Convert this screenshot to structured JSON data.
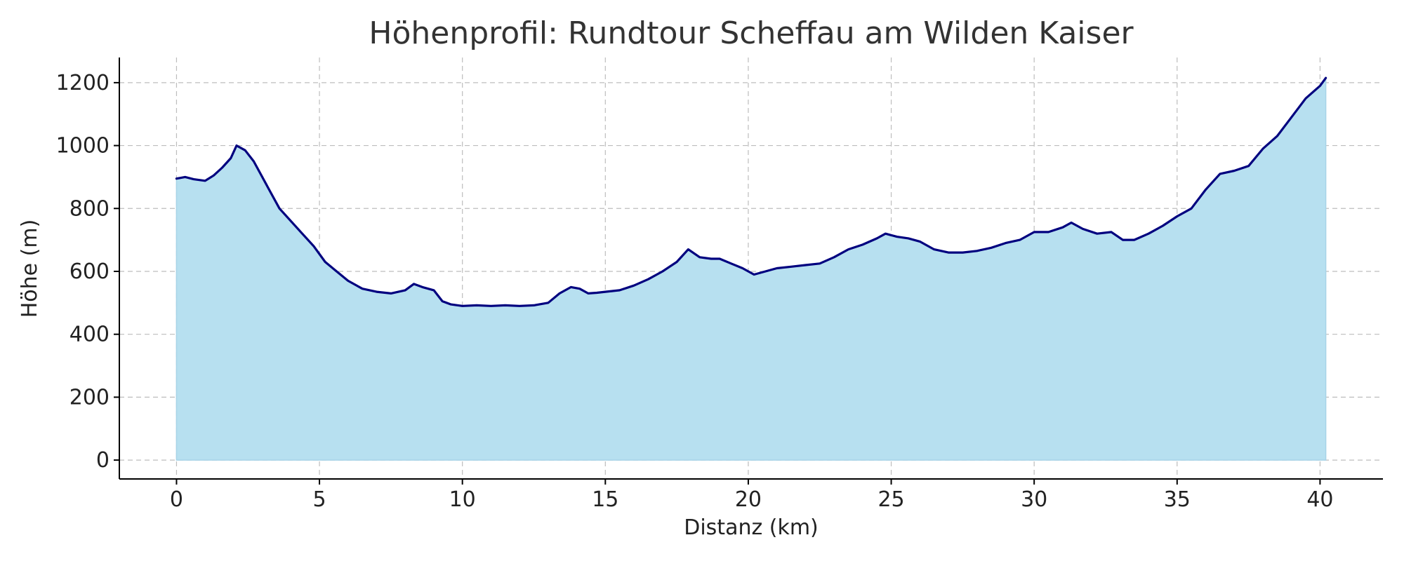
{
  "chart_data": {
    "type": "area",
    "title": "Höhenprofil: Rundtour Scheffau am Wilden Kaiser",
    "xlabel": "Distanz (km)",
    "ylabel": "Höhe (m)",
    "xlim": [
      -2,
      42.2
    ],
    "ylim": [
      -60,
      1280
    ],
    "xticks": [
      0,
      5,
      10,
      15,
      20,
      25,
      30,
      35,
      40
    ],
    "yticks": [
      0,
      200,
      400,
      600,
      800,
      1000,
      1200
    ],
    "grid": true,
    "legend": "none",
    "colors": {
      "line": "#00007f",
      "fill": "#b7e0f0",
      "fill_edge": "#a8d4e8"
    },
    "series": [
      {
        "x": [
          0,
          0.3,
          0.6,
          1.0,
          1.3,
          1.6,
          1.9,
          2.1,
          2.4,
          2.7,
          3.0,
          3.3,
          3.6,
          4.0,
          4.4,
          4.8,
          5.2,
          5.6,
          6.0,
          6.5,
          7.0,
          7.5,
          8.0,
          8.3,
          8.6,
          9.0,
          9.3,
          9.6,
          10.0,
          10.5,
          11.0,
          11.5,
          12.0,
          12.5,
          13.0,
          13.4,
          13.8,
          14.1,
          14.4,
          14.7,
          15.0,
          15.5,
          16.0,
          16.5,
          17.0,
          17.5,
          17.9,
          18.3,
          18.7,
          19.0,
          19.4,
          19.8,
          20.2,
          20.6,
          21.0,
          21.5,
          22.0,
          22.5,
          23.0,
          23.5,
          24.0,
          24.5,
          24.8,
          25.2,
          25.6,
          26.0,
          26.5,
          27.0,
          27.5,
          28.0,
          28.5,
          29.0,
          29.5,
          30.0,
          30.5,
          31.0,
          31.3,
          31.7,
          32.2,
          32.7,
          33.1,
          33.5,
          34.0,
          34.5,
          35.0,
          35.5,
          36.0,
          36.5,
          37.0,
          37.5,
          38.0,
          38.5,
          39.0,
          39.5,
          40.0,
          40.2
        ],
        "values": [
          895,
          900,
          893,
          888,
          905,
          930,
          960,
          1000,
          985,
          950,
          900,
          850,
          800,
          760,
          720,
          680,
          630,
          600,
          570,
          545,
          535,
          530,
          540,
          560,
          550,
          540,
          505,
          495,
          490,
          492,
          490,
          492,
          490,
          492,
          500,
          530,
          550,
          545,
          530,
          532,
          535,
          540,
          555,
          575,
          600,
          630,
          670,
          645,
          640,
          640,
          625,
          610,
          590,
          600,
          610,
          615,
          620,
          625,
          645,
          670,
          685,
          705,
          720,
          710,
          705,
          695,
          670,
          660,
          660,
          665,
          675,
          690,
          700,
          725,
          725,
          740,
          755,
          735,
          720,
          725,
          700,
          700,
          720,
          745,
          775,
          800,
          860,
          910,
          920,
          935,
          990,
          1030,
          1090,
          1150,
          1190,
          1215
        ]
      }
    ]
  }
}
